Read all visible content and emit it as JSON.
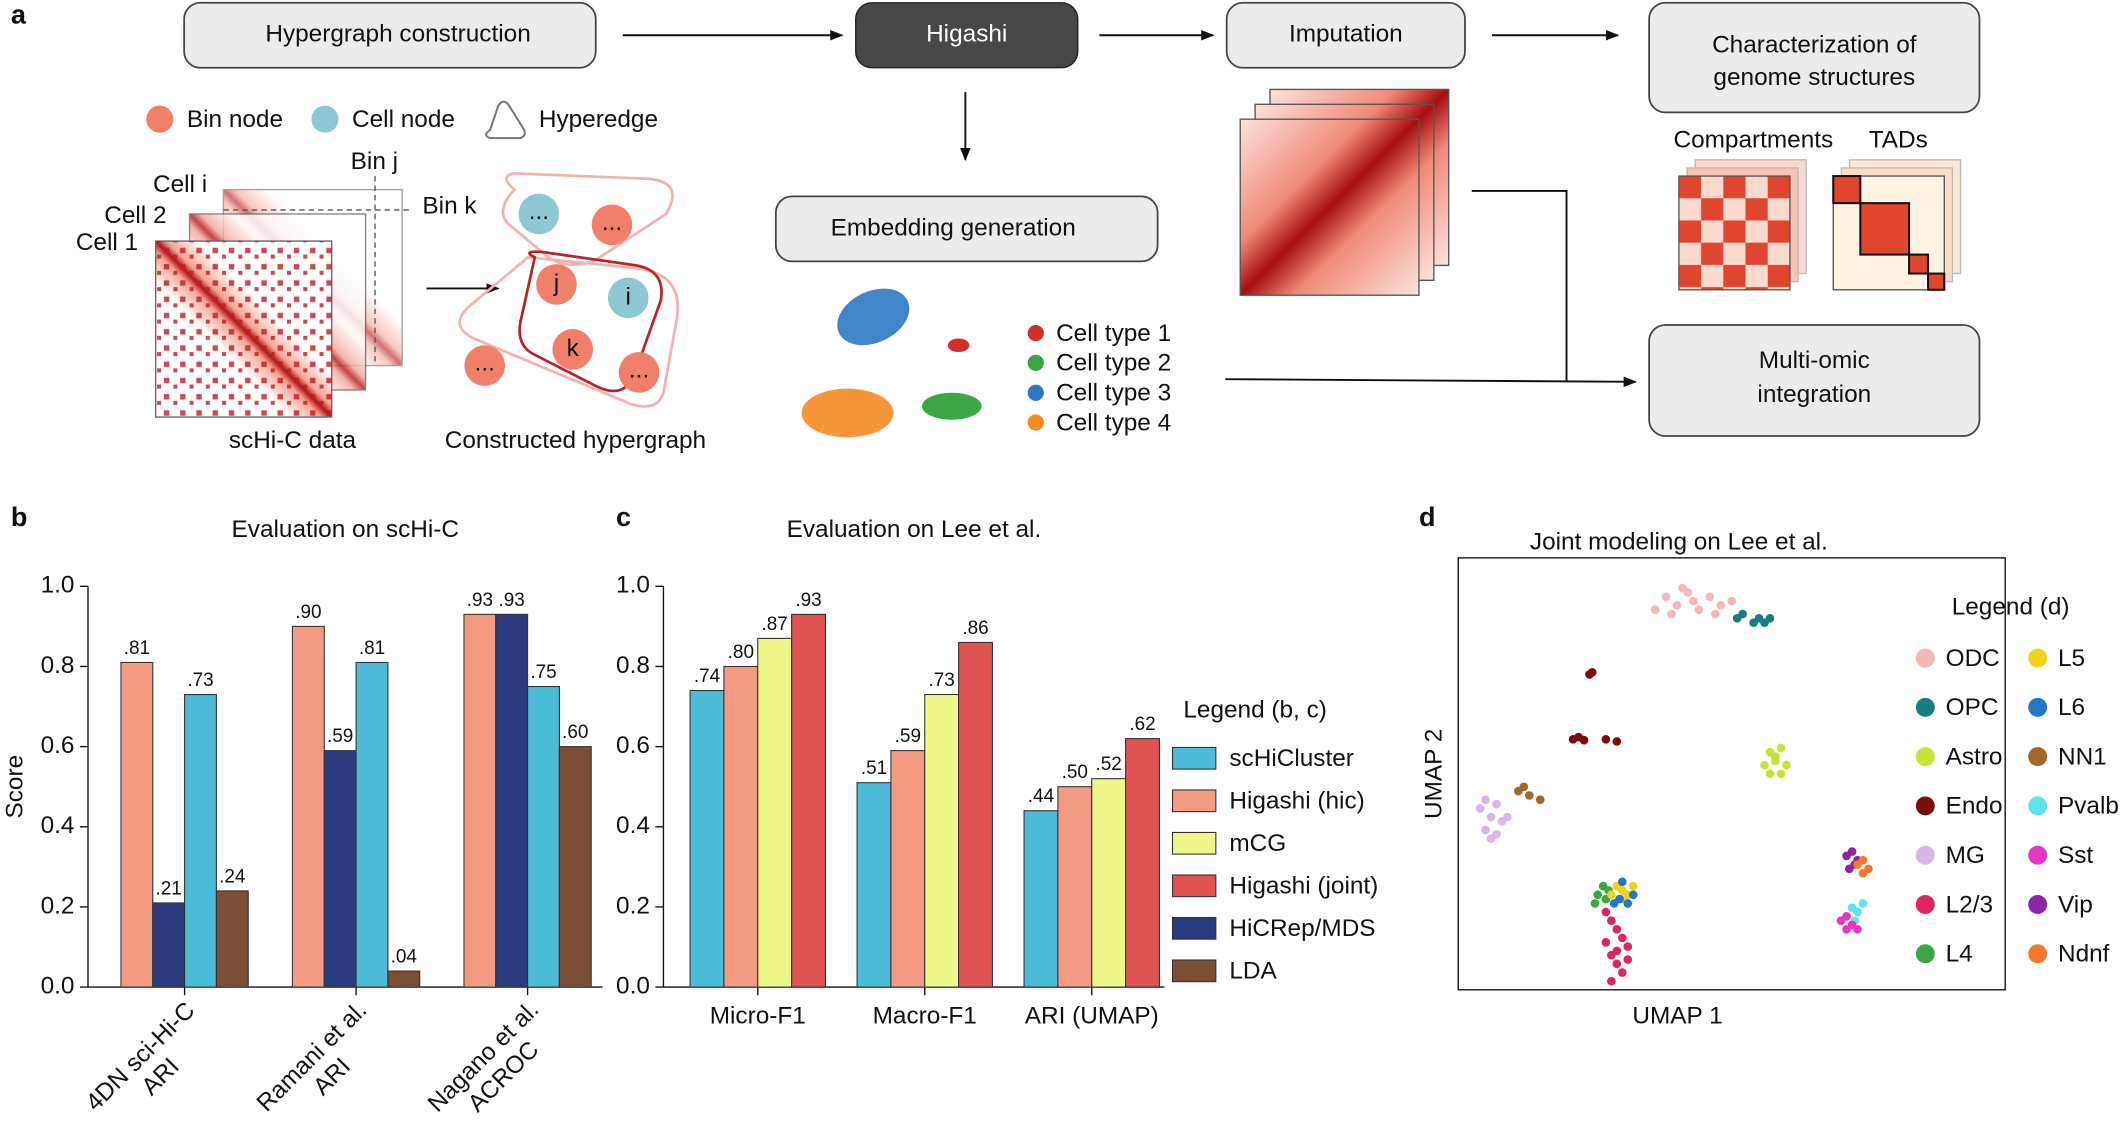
{
  "panel_labels": [
    "a",
    "b",
    "c",
    "d"
  ],
  "diagram": {
    "steps": {
      "hypergraph": "Hypergraph construction",
      "higashi": "Higashi",
      "imputation": "Imputation",
      "characterization": [
        "Characterization of",
        "genome structures"
      ],
      "embedding": "Embedding generation",
      "integration": [
        "Multi-omic",
        "integration"
      ]
    },
    "node_legend": [
      "Bin node",
      "Cell node",
      "Hyperedge"
    ],
    "cells": [
      "Cell i",
      "Cell 2",
      "Cell 1"
    ],
    "bins": [
      "Bin j",
      "Bin k"
    ],
    "captions": [
      "scHi-C data",
      "Constructed hypergraph"
    ],
    "nodes": [
      "...",
      "...",
      "j",
      "i",
      "k",
      "...",
      "..."
    ],
    "structures": [
      "Compartments",
      "TADs"
    ],
    "cell_types": [
      "Cell type 1",
      "Cell type 2",
      "Cell type 3",
      "Cell type 4"
    ]
  },
  "chart_data": [
    {
      "type": "bar",
      "title": "Evaluation on scHi-C",
      "ylabel": "Score",
      "categories": [
        [
          "4DN sci-Hi-C",
          "ARI"
        ],
        [
          "Ramani et al.",
          "ARI"
        ],
        [
          "Nagano et al.",
          "ACROC"
        ]
      ],
      "series": [
        {
          "name": "Higashi (hic)",
          "color": "#f39b82",
          "values": [
            0.81,
            0.9,
            0.93
          ],
          "value_labels": [
            ".81",
            ".90",
            ".93"
          ]
        },
        {
          "name": "HiCRep/MDS",
          "color": "#2b3b80",
          "values": [
            0.21,
            0.59,
            0.93
          ],
          "value_labels": [
            ".21",
            ".59",
            ".93"
          ]
        },
        {
          "name": "scHiCluster",
          "color": "#4bbbd8",
          "values": [
            0.73,
            0.81,
            0.75
          ],
          "value_labels": [
            ".73",
            ".81",
            ".75"
          ]
        },
        {
          "name": "LDA",
          "color": "#7b4f37",
          "values": [
            0.24,
            0.04,
            0.6
          ],
          "value_labels": [
            ".24",
            ".04",
            ".60"
          ]
        }
      ],
      "ylim": [
        0,
        1
      ],
      "yticks": [
        {
          "value": 0,
          "label": "0.0"
        },
        {
          "value": 0.2,
          "label": "0.2"
        },
        {
          "value": 0.4,
          "label": "0.4"
        },
        {
          "value": 0.6,
          "label": "0.6"
        },
        {
          "value": 0.8,
          "label": "0.8"
        },
        {
          "value": 1,
          "label": "1.0"
        }
      ]
    },
    {
      "type": "bar",
      "title": "Evaluation on Lee et al.",
      "legend_title": "Legend (b, c)",
      "categories": [
        [
          "Micro-F1"
        ],
        [
          "Macro-F1"
        ],
        [
          "ARI (UMAP)"
        ]
      ],
      "series": [
        {
          "name": "scHiCluster",
          "color": "#4bbbd8",
          "values": [
            0.74,
            0.51,
            0.44
          ],
          "value_labels": [
            ".74",
            ".51",
            ".44"
          ]
        },
        {
          "name": "Higashi (hic)",
          "color": "#f39b82",
          "values": [
            0.8,
            0.59,
            0.5
          ],
          "value_labels": [
            ".80",
            ".59",
            ".50"
          ]
        },
        {
          "name": "mCG",
          "color": "#eef78a",
          "values": [
            0.87,
            0.73,
            0.52
          ],
          "value_labels": [
            ".87",
            ".73",
            ".52"
          ]
        },
        {
          "name": "Higashi (joint)",
          "color": "#df5452",
          "values": [
            0.93,
            0.86,
            0.62
          ],
          "value_labels": [
            ".93",
            ".86",
            ".62"
          ]
        }
      ],
      "ylim": [
        0,
        1
      ],
      "yticks": [
        {
          "value": 0,
          "label": "0.0"
        },
        {
          "value": 0.2,
          "label": "0.2"
        },
        {
          "value": 0.4,
          "label": "0.4"
        },
        {
          "value": 0.6,
          "label": "0.6"
        },
        {
          "value": 0.8,
          "label": "0.8"
        },
        {
          "value": 1,
          "label": "1.0"
        }
      ]
    },
    {
      "type": "scatter",
      "title": "Joint modeling on Lee et al.",
      "xlabel": "UMAP 1",
      "ylabel": "UMAP 2",
      "legend_title": "Legend (d)",
      "xlim": [
        0,
        100
      ],
      "ylim": [
        0,
        100
      ],
      "series": [
        {
          "name": "ODC",
          "color": "#f4b8b8",
          "x": [
            36,
            38,
            40,
            42,
            44,
            46,
            48,
            50,
            39,
            43,
            47,
            41
          ],
          "y": [
            88,
            91,
            89,
            92,
            88,
            91,
            89,
            90,
            87,
            90,
            87,
            93
          ]
        },
        {
          "name": "OPC",
          "color": "#167e7e",
          "x": [
            51,
            52,
            54,
            55,
            56,
            57
          ],
          "y": [
            86,
            87,
            85,
            86,
            85,
            86
          ]
        },
        {
          "name": "Astro",
          "color": "#c9e23a",
          "x": [
            56,
            57,
            58,
            59,
            60,
            57,
            59,
            58
          ],
          "y": [
            52,
            55,
            53,
            56,
            52,
            50,
            50,
            54
          ]
        },
        {
          "name": "Endo",
          "color": "#7a0d0d",
          "x": [
            24,
            24.5,
            21,
            22,
            23,
            27,
            29
          ],
          "y": [
            73,
            73.5,
            58,
            58.5,
            57.8,
            58,
            57.5
          ]
        },
        {
          "name": "MG",
          "color": "#d9b5e8",
          "x": [
            4,
            5,
            6,
            7,
            8,
            5,
            6,
            7,
            9
          ],
          "y": [
            42,
            44,
            40,
            43,
            39,
            37,
            35,
            36,
            40
          ]
        },
        {
          "name": "L2/3",
          "color": "#e0245e",
          "x": [
            27,
            28,
            29,
            30,
            31,
            28,
            29,
            30,
            27,
            29,
            31,
            28
          ],
          "y": [
            18,
            16,
            14,
            12,
            10,
            8,
            6,
            4,
            11,
            9,
            7,
            2
          ]
        },
        {
          "name": "L4",
          "color": "#3aa744",
          "x": [
            25.5,
            26.5,
            27,
            25,
            27.5
          ],
          "y": [
            22,
            24,
            21,
            20,
            23
          ]
        },
        {
          "name": "L5",
          "color": "#f2d21a",
          "x": [
            28,
            29,
            30,
            31,
            32,
            30
          ],
          "y": [
            22,
            24,
            23,
            22,
            24,
            21
          ]
        },
        {
          "name": "L6",
          "color": "#1f78c8",
          "x": [
            28.5,
            29.5,
            31,
            32,
            30
          ],
          "y": [
            20,
            21,
            20,
            22,
            25
          ]
        },
        {
          "name": "NN1",
          "color": "#a0692a",
          "x": [
            11,
            12,
            13,
            15
          ],
          "y": [
            46,
            47,
            45,
            44
          ]
        },
        {
          "name": "Pvalb",
          "color": "#5fe3e8",
          "x": [
            71,
            72,
            73,
            74,
            72.5
          ],
          "y": [
            17,
            19,
            18,
            20,
            16
          ]
        },
        {
          "name": "Sst",
          "color": "#e636c8",
          "x": [
            70,
            71,
            72,
            71,
            73
          ],
          "y": [
            16,
            14,
            15,
            17,
            14
          ]
        },
        {
          "name": "Vip",
          "color": "#8e24a8",
          "x": [
            71,
            72,
            72.5,
            71.5,
            73
          ],
          "y": [
            31,
            32,
            29,
            28,
            30
          ]
        },
        {
          "name": "Ndnf",
          "color": "#f47a2a",
          "x": [
            73,
            74,
            75,
            74
          ],
          "y": [
            29,
            30,
            28,
            27
          ]
        }
      ]
    }
  ]
}
